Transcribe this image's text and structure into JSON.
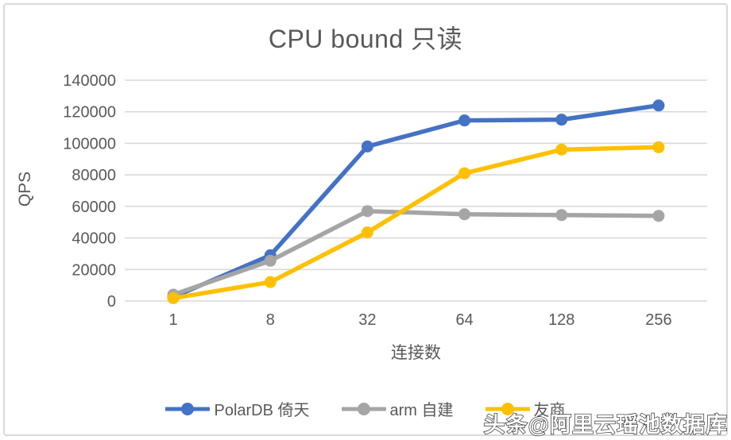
{
  "chart_data": {
    "type": "line",
    "title": "CPU bound 只读",
    "xlabel": "连接数",
    "ylabel": "QPS",
    "categories": [
      "1",
      "8",
      "32",
      "64",
      "128",
      "256"
    ],
    "ylim": [
      0,
      140000
    ],
    "ytick_step": 20000,
    "ytick_labels": [
      "0",
      "20000",
      "40000",
      "60000",
      "80000",
      "100000",
      "120000",
      "140000"
    ],
    "grid": "horizontal",
    "legend_position": "bottom",
    "series": [
      {
        "name": "PolarDB 倚天",
        "color": "#4472C4",
        "values": [
          2500,
          29000,
          98000,
          114500,
          115000,
          124000
        ]
      },
      {
        "name": "arm 自建",
        "color": "#A5A5A5",
        "values": [
          4000,
          25500,
          57000,
          55000,
          54500,
          54000
        ]
      },
      {
        "name": "友商",
        "color": "#FFC000",
        "values": [
          1800,
          12000,
          43500,
          81000,
          96000,
          97500
        ]
      }
    ],
    "colors": {
      "grid": "#D9D9D9",
      "text": "#595959"
    }
  },
  "overlay": {
    "watermark": "头条@阿里云瑶池数据库"
  }
}
